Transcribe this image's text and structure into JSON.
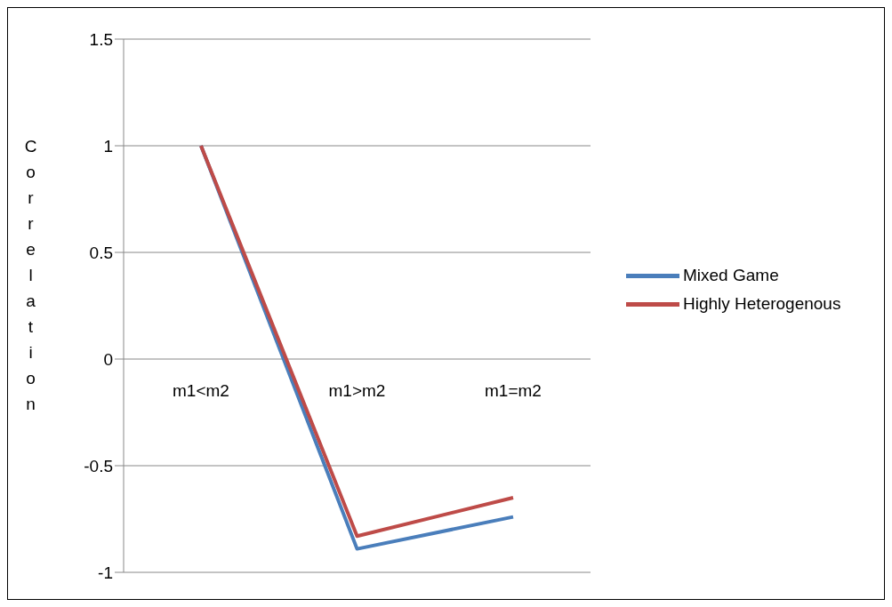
{
  "chart_data": {
    "type": "line",
    "ylabel": "Correlation",
    "categories": [
      "m1<m2",
      "m1>m2",
      "m1=m2"
    ],
    "series": [
      {
        "name": "Mixed Game",
        "color": "#4a7ebb",
        "values": [
          1,
          -0.89,
          -0.74
        ]
      },
      {
        "name": "Highly Heterogenous",
        "color": "#be4b48",
        "values": [
          1,
          -0.83,
          -0.65
        ]
      }
    ],
    "ylim": [
      -1,
      1.5
    ],
    "yticks": [
      -1,
      -0.5,
      0,
      0.5,
      1,
      1.5
    ],
    "grid": "y",
    "legend": "right",
    "marker": "none",
    "line_style": "solid"
  }
}
